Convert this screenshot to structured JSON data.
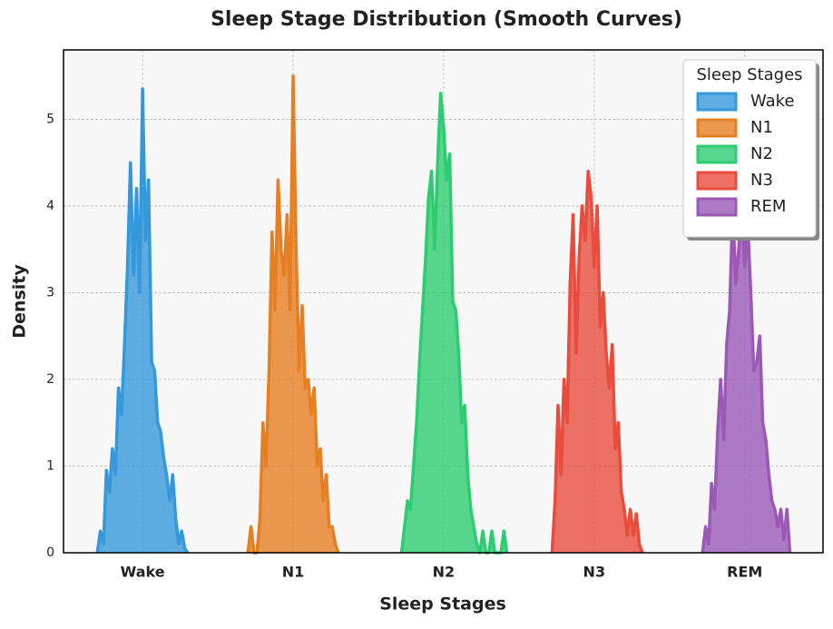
{
  "chart_data": {
    "type": "area",
    "title": "Sleep Stage Distribution (Smooth Curves)",
    "x_label": "Sleep Stages",
    "y_label": "Density",
    "xlim": [
      -0.525,
      4.52
    ],
    "ylim": [
      0,
      5.8
    ],
    "xticks": [
      {
        "value": 0,
        "label": "Wake"
      },
      {
        "value": 1,
        "label": "N1"
      },
      {
        "value": 2,
        "label": "N2"
      },
      {
        "value": 3,
        "label": "N3"
      },
      {
        "value": 4,
        "label": "REM"
      }
    ],
    "yticks": [
      0,
      1,
      2,
      3,
      4,
      5
    ],
    "grid": true,
    "legend_title": "Sleep Stages",
    "legend_loc": "upper right",
    "series": [
      {
        "name": "Wake",
        "color": "#3498db",
        "x": [
          -0.3,
          -0.28,
          -0.26,
          -0.24,
          -0.22,
          -0.2,
          -0.18,
          -0.16,
          -0.14,
          -0.12,
          -0.1,
          -0.08,
          -0.06,
          -0.04,
          -0.02,
          0.0,
          0.02,
          0.04,
          0.06,
          0.08,
          0.1,
          0.12,
          0.14,
          0.16,
          0.18,
          0.2,
          0.22,
          0.24,
          0.26,
          0.28,
          0.3
        ],
        "values": [
          0,
          0.25,
          0.1,
          0.95,
          0.7,
          1.2,
          0.9,
          1.9,
          1.6,
          2.4,
          3.3,
          4.5,
          3.2,
          4.2,
          3.0,
          5.35,
          3.6,
          4.3,
          2.2,
          2.1,
          1.5,
          1.4,
          1.1,
          0.9,
          0.6,
          0.9,
          0.4,
          0.1,
          0.25,
          0.05,
          0
        ]
      },
      {
        "name": "N1",
        "color": "#e67e22",
        "x": [
          0.7,
          0.72,
          0.74,
          0.76,
          0.78,
          0.8,
          0.82,
          0.84,
          0.86,
          0.88,
          0.9,
          0.92,
          0.94,
          0.96,
          0.98,
          1.0,
          1.02,
          1.04,
          1.06,
          1.08,
          1.1,
          1.12,
          1.14,
          1.16,
          1.18,
          1.2,
          1.22,
          1.24,
          1.26,
          1.28,
          1.3
        ],
        "values": [
          0,
          0.3,
          0,
          0,
          0.4,
          1.5,
          1.0,
          2.1,
          3.7,
          2.8,
          4.3,
          3.5,
          3.2,
          3.9,
          2.8,
          5.5,
          3.5,
          2.1,
          2.85,
          1.9,
          2.0,
          1.6,
          1.9,
          1.0,
          1.2,
          0.6,
          0.9,
          0.3,
          0.3,
          0.1,
          0
        ]
      },
      {
        "name": "N2",
        "color": "#2ecc71",
        "x": [
          1.72,
          1.74,
          1.76,
          1.78,
          1.8,
          1.82,
          1.84,
          1.86,
          1.88,
          1.9,
          1.92,
          1.94,
          1.96,
          1.98,
          2.0,
          2.02,
          2.04,
          2.06,
          2.08,
          2.1,
          2.12,
          2.14,
          2.16,
          2.18,
          2.2,
          2.22,
          2.24,
          2.26,
          2.28,
          2.3,
          2.32,
          2.34,
          2.36,
          2.38,
          2.4,
          2.42
        ],
        "values": [
          0,
          0.3,
          0.6,
          0.5,
          1.0,
          1.5,
          2.2,
          2.8,
          3.4,
          4.1,
          4.4,
          3.5,
          4.5,
          5.3,
          4.9,
          4.3,
          4.6,
          2.9,
          2.8,
          2.3,
          1.5,
          1.7,
          0.9,
          0.5,
          0.3,
          0.1,
          0,
          0.25,
          0,
          0,
          0.25,
          0,
          0,
          0,
          0.25,
          0
        ]
      },
      {
        "name": "N3",
        "color": "#e74c3c",
        "x": [
          2.72,
          2.74,
          2.76,
          2.78,
          2.8,
          2.82,
          2.84,
          2.86,
          2.88,
          2.9,
          2.92,
          2.94,
          2.96,
          2.98,
          3.0,
          3.02,
          3.04,
          3.06,
          3.08,
          3.1,
          3.12,
          3.14,
          3.16,
          3.18,
          3.2,
          3.22,
          3.24,
          3.26,
          3.28,
          3.3,
          3.32
        ],
        "values": [
          0,
          0.6,
          1.7,
          0.9,
          2.0,
          1.5,
          3.1,
          3.9,
          2.3,
          3.4,
          4.0,
          3.6,
          4.4,
          4.1,
          3.3,
          4.0,
          2.6,
          3.0,
          2.3,
          1.9,
          2.4,
          1.2,
          1.5,
          0.7,
          0.5,
          0.2,
          0.5,
          0.2,
          0.45,
          0.1,
          0
        ]
      },
      {
        "name": "REM",
        "color": "#9b59b6",
        "x": [
          3.72,
          3.74,
          3.76,
          3.78,
          3.8,
          3.82,
          3.84,
          3.86,
          3.88,
          3.9,
          3.92,
          3.94,
          3.96,
          3.98,
          4.0,
          4.02,
          4.04,
          4.06,
          4.08,
          4.1,
          4.12,
          4.14,
          4.16,
          4.18,
          4.2,
          4.22,
          4.24,
          4.26,
          4.28,
          4.3
        ],
        "values": [
          0,
          0.3,
          0.1,
          0.8,
          0.5,
          1.4,
          2.0,
          1.3,
          2.4,
          2.8,
          4.0,
          3.1,
          3.5,
          4.0,
          3.3,
          3.8,
          3.0,
          2.1,
          2.2,
          2.5,
          1.5,
          1.3,
          0.9,
          0.6,
          0.5,
          0.3,
          0.5,
          0.15,
          0.5,
          0
        ]
      }
    ]
  }
}
